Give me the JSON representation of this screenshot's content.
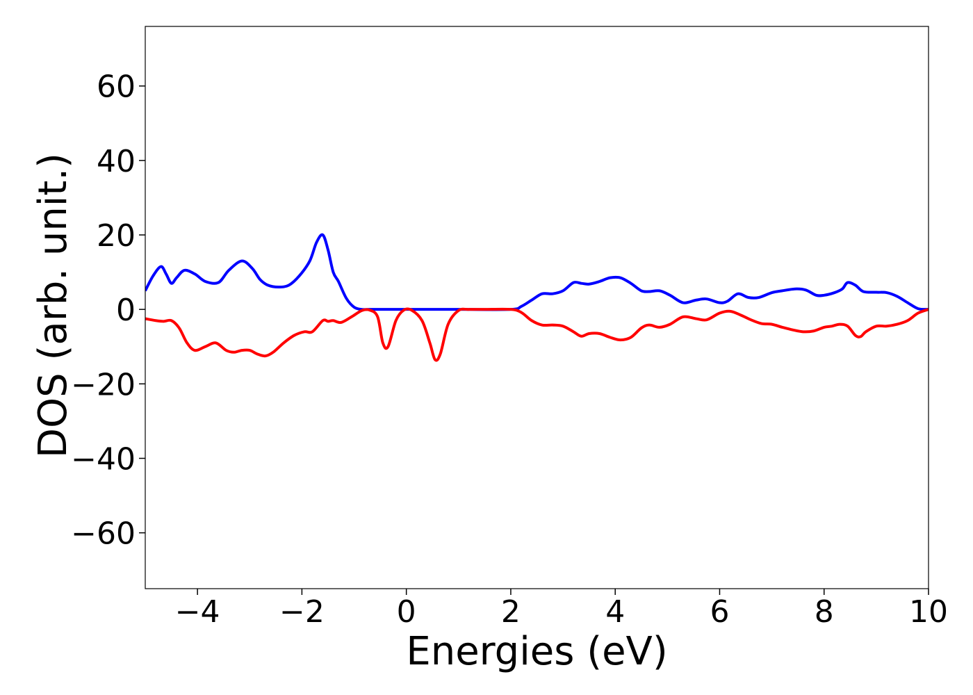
{
  "chart_data": {
    "type": "line",
    "xlabel": "Energies (eV)",
    "ylabel": "DOS (arb. unit.)",
    "xlim": [
      -5,
      10
    ],
    "ylim": [
      -75,
      76
    ],
    "x_ticks": [
      -4,
      -2,
      0,
      2,
      4,
      6,
      8,
      10
    ],
    "x_tick_labels": [
      "−4",
      "−2",
      "0",
      "2",
      "4",
      "6",
      "8",
      "10"
    ],
    "y_ticks": [
      60,
      40,
      20,
      0,
      -20,
      -40,
      -60
    ],
    "y_tick_labels": [
      "60",
      "40",
      "20",
      "0",
      "−20",
      "−40",
      "−60"
    ],
    "grid": false,
    "series": [
      {
        "color": "#0000ff",
        "x": [
          -5.0,
          -4.85,
          -4.7,
          -4.6,
          -4.5,
          -4.4,
          -4.25,
          -4.05,
          -3.85,
          -3.6,
          -3.4,
          -3.15,
          -2.95,
          -2.8,
          -2.65,
          -2.45,
          -2.25,
          -2.05,
          -1.85,
          -1.72,
          -1.6,
          -1.5,
          -1.4,
          -1.3,
          -1.15,
          -1.0,
          -0.85,
          -0.7,
          -0.5,
          0.0,
          1.0,
          2.0,
          2.2,
          2.4,
          2.6,
          2.8,
          3.0,
          3.2,
          3.35,
          3.5,
          3.7,
          3.9,
          4.1,
          4.3,
          4.5,
          4.65,
          4.85,
          5.05,
          5.3,
          5.55,
          5.75,
          6.0,
          6.15,
          6.35,
          6.55,
          6.75,
          7.0,
          7.2,
          7.45,
          7.65,
          7.85,
          8.0,
          8.2,
          8.35,
          8.45,
          8.6,
          8.75,
          9.0,
          9.2,
          9.4,
          9.6,
          9.8,
          10.0
        ],
        "values": [
          5,
          9,
          11.5,
          9.5,
          7,
          8.5,
          10.5,
          9.5,
          7.5,
          7.2,
          10.5,
          13,
          11,
          8,
          6.5,
          6,
          6.5,
          9,
          13,
          18,
          20,
          16,
          10,
          7.5,
          3,
          0.6,
          0,
          0,
          0,
          0,
          0,
          0,
          0.8,
          2.5,
          4.2,
          4.2,
          5,
          7.2,
          7,
          6.8,
          7.5,
          8.5,
          8.5,
          7,
          5,
          4.8,
          5,
          3.8,
          1.8,
          2.5,
          2.8,
          1.8,
          2.2,
          4.2,
          3.2,
          3.2,
          4.5,
          5,
          5.5,
          5.2,
          3.8,
          3.8,
          4.5,
          5.5,
          7.2,
          6.5,
          4.8,
          4.6,
          4.5,
          3.5,
          1.8,
          0.2,
          0
        ]
      },
      {
        "color": "#ff0000",
        "x": [
          -5.0,
          -4.8,
          -4.65,
          -4.5,
          -4.35,
          -4.2,
          -4.05,
          -3.85,
          -3.65,
          -3.45,
          -3.3,
          -3.15,
          -3.0,
          -2.85,
          -2.7,
          -2.55,
          -2.35,
          -2.15,
          -1.95,
          -1.8,
          -1.6,
          -1.5,
          -1.4,
          -1.25,
          -1.05,
          -0.85,
          -0.7,
          -0.55,
          -0.45,
          -0.35,
          -0.2,
          -0.05,
          0.1,
          0.3,
          0.45,
          0.55,
          0.65,
          0.8,
          1.0,
          1.2,
          1.5,
          2.0,
          2.2,
          2.4,
          2.6,
          2.8,
          3.0,
          3.2,
          3.35,
          3.5,
          3.7,
          3.9,
          4.1,
          4.3,
          4.5,
          4.65,
          4.85,
          5.05,
          5.3,
          5.55,
          5.75,
          6.0,
          6.2,
          6.4,
          6.6,
          6.8,
          7.0,
          7.2,
          7.4,
          7.6,
          7.8,
          8.0,
          8.15,
          8.3,
          8.45,
          8.6,
          8.7,
          8.8,
          9.0,
          9.2,
          9.4,
          9.6,
          9.8,
          10.0
        ],
        "values": [
          -2.5,
          -3,
          -3.2,
          -3,
          -5,
          -9,
          -11,
          -10,
          -9,
          -11,
          -11.5,
          -11,
          -11,
          -12,
          -12.5,
          -11.5,
          -9,
          -7,
          -6,
          -6,
          -3,
          -3.2,
          -3,
          -3.5,
          -2,
          -0.3,
          -0.2,
          -2,
          -9,
          -10,
          -3,
          -0.2,
          -0.2,
          -3,
          -9,
          -13.5,
          -12,
          -4,
          -0.3,
          0,
          0,
          0,
          -0.8,
          -3,
          -4.2,
          -4.2,
          -4.5,
          -6,
          -7.2,
          -6.5,
          -6.5,
          -7.5,
          -8.2,
          -7.5,
          -5,
          -4.2,
          -4.8,
          -4,
          -2,
          -2.5,
          -2.8,
          -1,
          -0.5,
          -1.5,
          -2.8,
          -3.8,
          -4,
          -4.8,
          -5.5,
          -6,
          -5.8,
          -4.8,
          -4.5,
          -4,
          -4.5,
          -7,
          -7.3,
          -6,
          -4.5,
          -4.5,
          -4,
          -3,
          -1,
          0
        ]
      }
    ]
  }
}
